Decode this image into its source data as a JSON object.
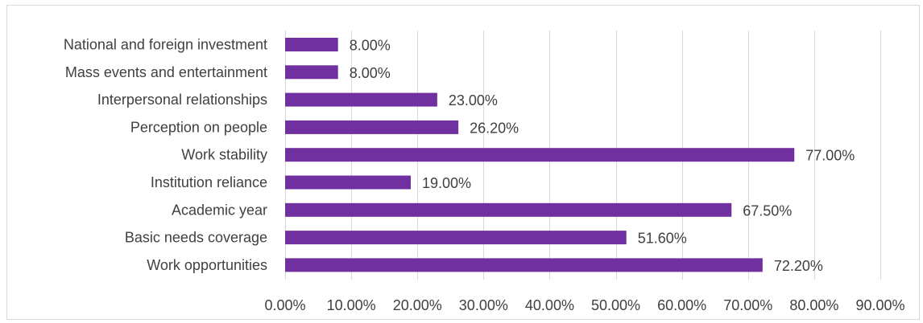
{
  "chart_data": {
    "type": "bar",
    "orientation": "horizontal",
    "categories": [
      "National and foreign investment",
      "Mass events and entertainment",
      "Interpersonal relationships",
      "Perception on people",
      "Work stability",
      "Institution reliance",
      "Academic year",
      "Basic needs coverage",
      "Work opportunities"
    ],
    "values": [
      8.0,
      8.0,
      23.0,
      26.2,
      77.0,
      19.0,
      67.5,
      51.6,
      72.2
    ],
    "value_labels": [
      "8.00%",
      "8.00%",
      "23.00%",
      "26.20%",
      "77.00%",
      "19.00%",
      "67.50%",
      "51.60%",
      "72.20%"
    ],
    "xlim": [
      0,
      90
    ],
    "x_ticks": [
      0,
      10,
      20,
      30,
      40,
      50,
      60,
      70,
      80,
      90
    ],
    "x_tick_labels": [
      "0.00%",
      "10.00%",
      "20.00%",
      "30.00%",
      "40.00%",
      "50.00%",
      "60.00%",
      "70.00%",
      "80.00%",
      "90.00%"
    ],
    "grid": true,
    "legend": "none",
    "bar_color": "#7030a0",
    "title": "",
    "xlabel": "",
    "ylabel": ""
  }
}
